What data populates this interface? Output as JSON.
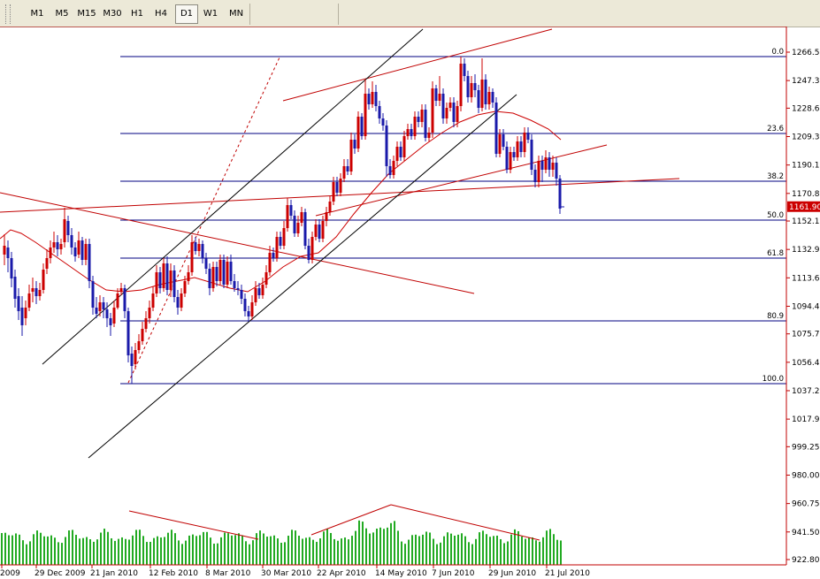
{
  "toolbar": {
    "timeframes": [
      "M1",
      "M5",
      "M15",
      "M30",
      "H1",
      "H4",
      "D1",
      "W1",
      "MN"
    ],
    "active": "D1"
  },
  "chart": {
    "price_axis_labels": [
      "1266.55",
      "1247.30",
      "1228.60",
      "1209.35",
      "1190.10",
      "1170.85",
      "1152.15",
      "1132.90",
      "1113.65",
      "1094.40",
      "1075.70",
      "1056.45",
      "1037.20",
      "1017.95",
      "999.25",
      "980.00",
      "960.75",
      "941.50",
      "922.80"
    ],
    "current_price": "1161.90",
    "date_labels": [
      "2009",
      "29 Dec 2009",
      "21 Jan 2010",
      "12 Feb 2010",
      "8 Mar 2010",
      "30 Mar 2010",
      "22 Apr 2010",
      "14 May 2010",
      "7 Jun 2010",
      "29 Jun 2010",
      "21 Jul 2010"
    ],
    "fibonacci_levels": [
      "0.0",
      "23.6",
      "38.2",
      "50.0",
      "61.8",
      "80.9",
      "100.0"
    ],
    "colors": {
      "bull_candle": "#cc0000",
      "bear_candle": "#1a1aaa",
      "fib_line": "#000080",
      "trend_red": "#c00000",
      "channel_black": "#000000",
      "volume": "#22aa22",
      "axis": "#c00000",
      "price_tag": "#cc0000"
    },
    "icons": {
      "toolbar_grip": "grip-icon"
    }
  }
}
